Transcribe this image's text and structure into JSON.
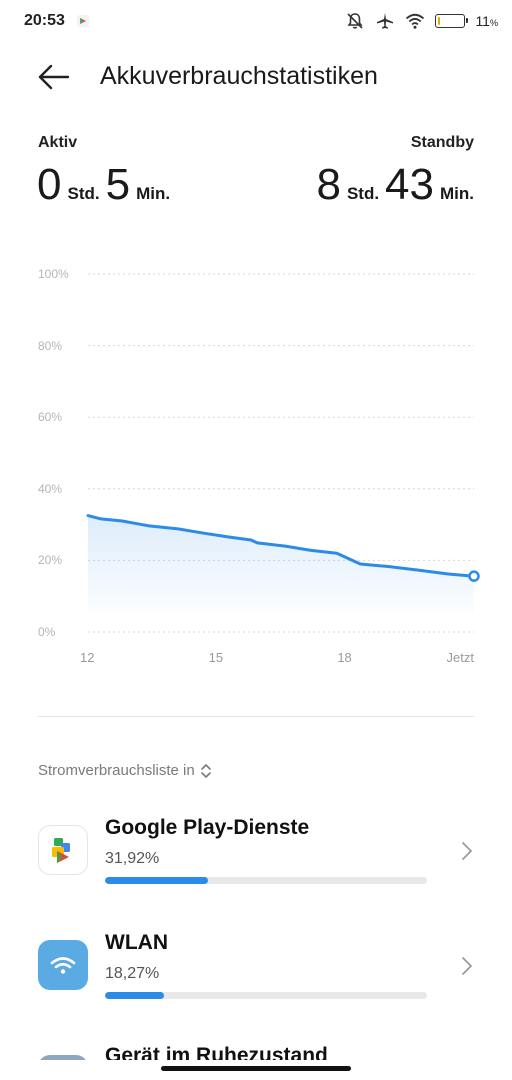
{
  "status_bar": {
    "time": "20:53",
    "battery_percent_text": "11",
    "battery_percent_sign": "%",
    "battery_level": 0.11,
    "icons": [
      "notifications-muted-icon",
      "airplane-mode-icon",
      "wifi-icon",
      "battery-icon"
    ]
  },
  "header": {
    "title": "Akkuverbrauchstatistiken",
    "back_icon": "arrow-left-icon"
  },
  "usage": {
    "active": {
      "label": "Aktiv",
      "hours": "0",
      "hours_unit": "Std.",
      "minutes": "5",
      "minutes_unit": "Min."
    },
    "standby": {
      "label": "Standby",
      "hours": "8",
      "hours_unit": "Std.",
      "minutes": "43",
      "minutes_unit": "Min."
    }
  },
  "chart_data": {
    "type": "area",
    "title": "",
    "xlabel": "",
    "ylabel": "",
    "y_ticks": [
      "100%",
      "80%",
      "60%",
      "40%",
      "20%",
      "0%"
    ],
    "x_ticks": [
      "12",
      "15",
      "18",
      "Jetzt"
    ],
    "ylim": [
      0,
      100
    ],
    "x_range_hours": [
      12,
      21
    ],
    "grid": "horizontal-dotted",
    "line_color": "#2d8be8",
    "points": [
      [
        12.0,
        32.5
      ],
      [
        12.3,
        31.6
      ],
      [
        12.8,
        31.0
      ],
      [
        13.4,
        29.7
      ],
      [
        14.1,
        28.8
      ],
      [
        14.7,
        27.6
      ],
      [
        15.3,
        26.5
      ],
      [
        15.8,
        25.7
      ],
      [
        15.95,
        24.9
      ],
      [
        16.6,
        24.0
      ],
      [
        17.2,
        22.8
      ],
      [
        17.8,
        22.0
      ],
      [
        18.35,
        19.0
      ],
      [
        19.0,
        18.3
      ],
      [
        19.7,
        17.3
      ],
      [
        20.4,
        16.2
      ],
      [
        21.0,
        15.6
      ]
    ]
  },
  "list": {
    "header": "Stromverbrauchsliste in",
    "items": [
      {
        "name": "Google Play-Dienste",
        "percent_text": "31,92%",
        "share": 0.3192,
        "icon": "google-play-services-icon"
      },
      {
        "name": "WLAN",
        "percent_text": "18,27%",
        "share": 0.1827,
        "icon": "wifi-icon"
      },
      {
        "name": "Gerät im Ruhezustand",
        "percent_text": "",
        "share": 0,
        "icon": "device-idle-icon"
      }
    ]
  },
  "colors": {
    "accent": "#2d8be8",
    "wifi_tile": "#5aabe4"
  }
}
